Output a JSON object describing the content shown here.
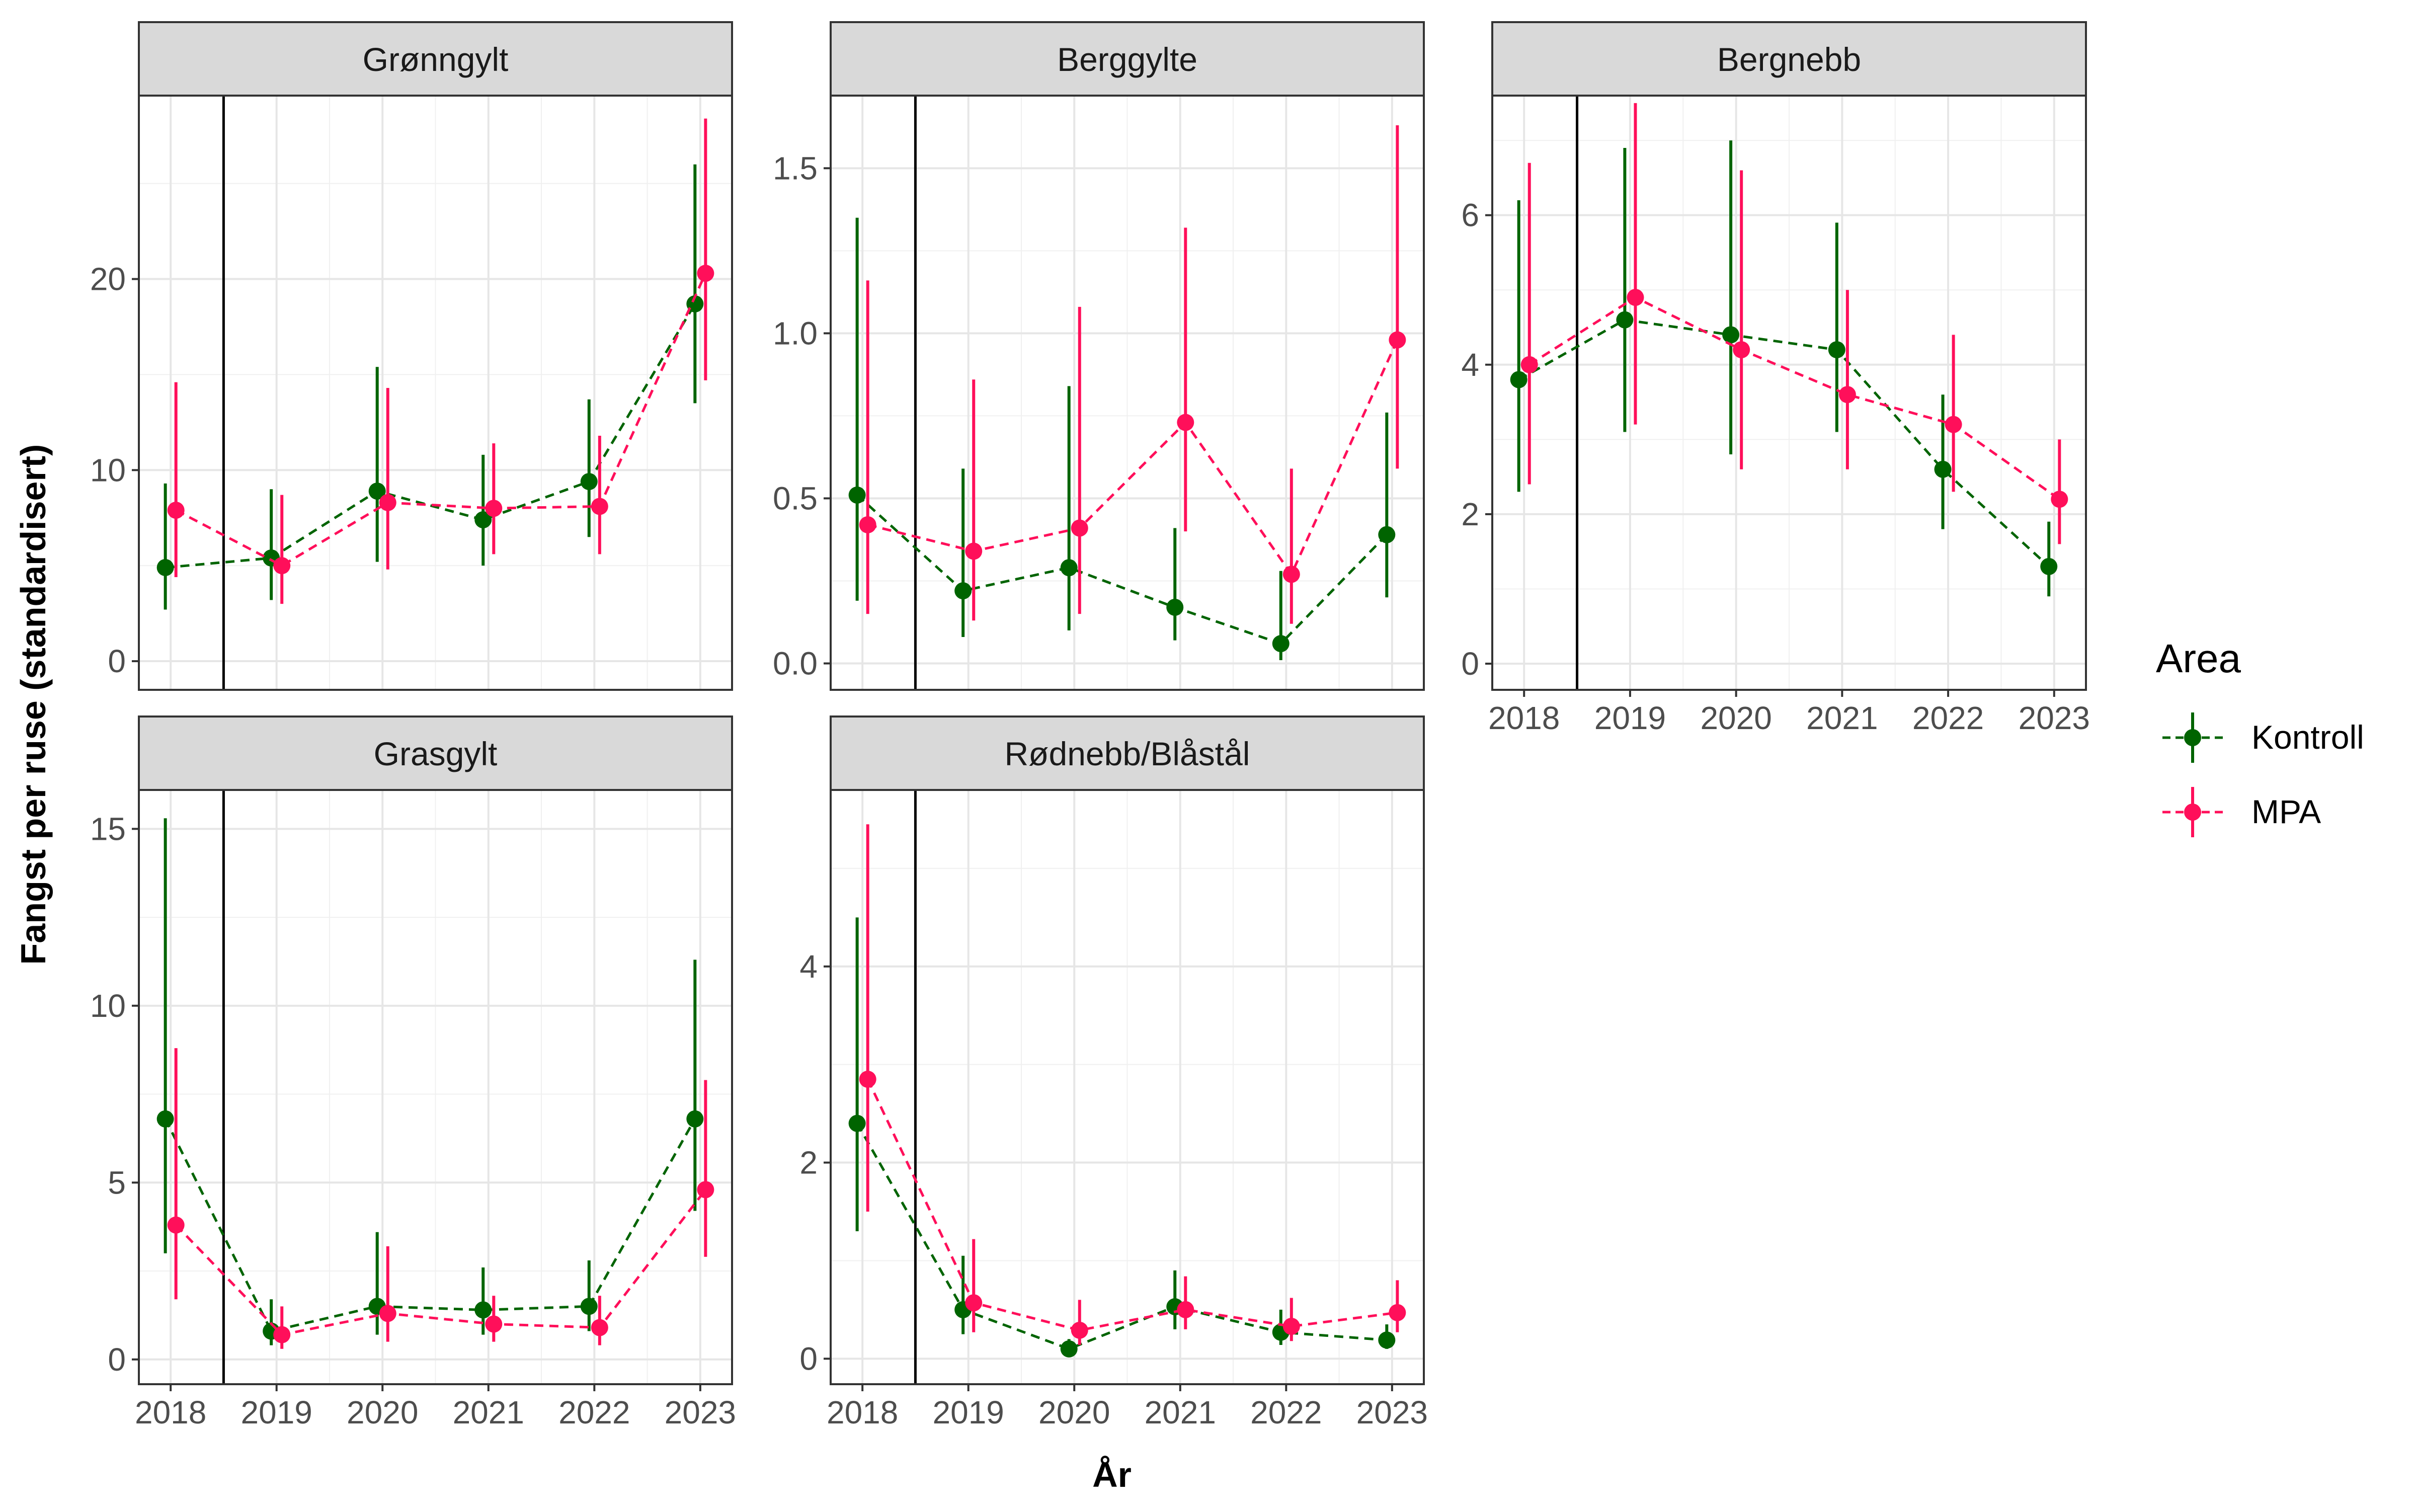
{
  "chart_data": {
    "type": "line",
    "ylabel": "Fangst per ruse (standardisert)",
    "xlabel": "År",
    "x": [
      "2018",
      "2019",
      "2020",
      "2021",
      "2022",
      "2023"
    ],
    "legend": {
      "title": "Area",
      "placement": "right",
      "entries": [
        {
          "name": "Kontroll",
          "color": "#006400"
        },
        {
          "name": "MPA",
          "color": "#FF0F5A"
        }
      ]
    },
    "vline_x": 2018.5,
    "panels": [
      {
        "title": "Grønngylt",
        "ylim": [
          -1.5,
          29.6
        ],
        "yticks": [
          0,
          10,
          20
        ],
        "series": [
          {
            "name": "Kontroll",
            "y": [
              4.9,
              5.4,
              8.9,
              7.4,
              9.4,
              18.7
            ],
            "lower": [
              2.7,
              3.2,
              5.2,
              5.0,
              6.5,
              13.5
            ],
            "upper": [
              9.3,
              9.0,
              15.4,
              10.8,
              13.7,
              26.0
            ]
          },
          {
            "name": "MPA",
            "y": [
              7.9,
              5.0,
              8.3,
              8.0,
              8.1,
              20.3
            ],
            "lower": [
              4.4,
              3.0,
              4.8,
              5.6,
              5.6,
              14.7
            ],
            "upper": [
              14.6,
              8.7,
              14.3,
              11.4,
              11.8,
              28.4
            ]
          }
        ]
      },
      {
        "title": "Berggylte",
        "ylim": [
          -0.08,
          1.72
        ],
        "yticks": [
          0.0,
          0.5,
          1.0,
          1.5
        ],
        "series": [
          {
            "name": "Kontroll",
            "y": [
              0.51,
              0.22,
              0.29,
              0.17,
              0.06,
              0.39
            ],
            "lower": [
              0.19,
              0.08,
              0.1,
              0.07,
              0.01,
              0.2
            ],
            "upper": [
              1.35,
              0.59,
              0.84,
              0.41,
              0.28,
              0.76
            ]
          },
          {
            "name": "MPA",
            "y": [
              0.42,
              0.34,
              0.41,
              0.73,
              0.27,
              0.98
            ],
            "lower": [
              0.15,
              0.13,
              0.15,
              0.4,
              0.12,
              0.59
            ],
            "upper": [
              1.16,
              0.86,
              1.08,
              1.32,
              0.59,
              1.63
            ]
          }
        ]
      },
      {
        "title": "Bergnebb",
        "ylim": [
          -0.35,
          7.6
        ],
        "yticks": [
          0,
          2,
          4,
          6
        ],
        "series": [
          {
            "name": "Kontroll",
            "y": [
              3.8,
              4.6,
              4.4,
              4.2,
              2.6,
              1.3
            ],
            "lower": [
              2.3,
              3.1,
              2.8,
              3.1,
              1.8,
              0.9
            ],
            "upper": [
              6.2,
              6.9,
              7.0,
              5.9,
              3.6,
              1.9
            ]
          },
          {
            "name": "MPA",
            "y": [
              4.0,
              4.9,
              4.2,
              3.6,
              3.2,
              2.2
            ],
            "lower": [
              2.4,
              3.2,
              2.6,
              2.6,
              2.3,
              1.6
            ],
            "upper": [
              6.7,
              7.5,
              6.6,
              5.0,
              4.4,
              3.0
            ]
          }
        ]
      },
      {
        "title": "Grasgylt",
        "ylim": [
          -0.7,
          16.1
        ],
        "yticks": [
          0,
          5,
          10,
          15
        ],
        "series": [
          {
            "name": "Kontroll",
            "y": [
              6.8,
              0.8,
              1.5,
              1.4,
              1.5,
              6.8
            ],
            "lower": [
              3.0,
              0.4,
              0.7,
              0.7,
              0.8,
              4.2
            ],
            "upper": [
              15.3,
              1.7,
              3.6,
              2.6,
              2.8,
              11.3
            ]
          },
          {
            "name": "MPA",
            "y": [
              3.8,
              0.7,
              1.3,
              1.0,
              0.9,
              4.8
            ],
            "lower": [
              1.7,
              0.3,
              0.5,
              0.5,
              0.4,
              2.9
            ],
            "upper": [
              8.8,
              1.5,
              3.2,
              1.8,
              1.8,
              7.9
            ]
          }
        ]
      },
      {
        "title": "Rødnebb/Blåstål",
        "ylim": [
          -0.26,
          5.8
        ],
        "yticks": [
          0,
          2,
          4
        ],
        "series": [
          {
            "name": "Kontroll",
            "y": [
              2.4,
              0.5,
              0.1,
              0.53,
              0.27,
              0.19
            ],
            "lower": [
              1.3,
              0.25,
              0.05,
              0.3,
              0.14,
              0.1
            ],
            "upper": [
              4.5,
              1.05,
              0.2,
              0.9,
              0.5,
              0.35
            ]
          },
          {
            "name": "MPA",
            "y": [
              2.85,
              0.57,
              0.29,
              0.5,
              0.33,
              0.47
            ],
            "lower": [
              1.5,
              0.27,
              0.14,
              0.3,
              0.18,
              0.27
            ],
            "upper": [
              5.45,
              1.22,
              0.6,
              0.84,
              0.62,
              0.8
            ]
          }
        ]
      }
    ]
  }
}
